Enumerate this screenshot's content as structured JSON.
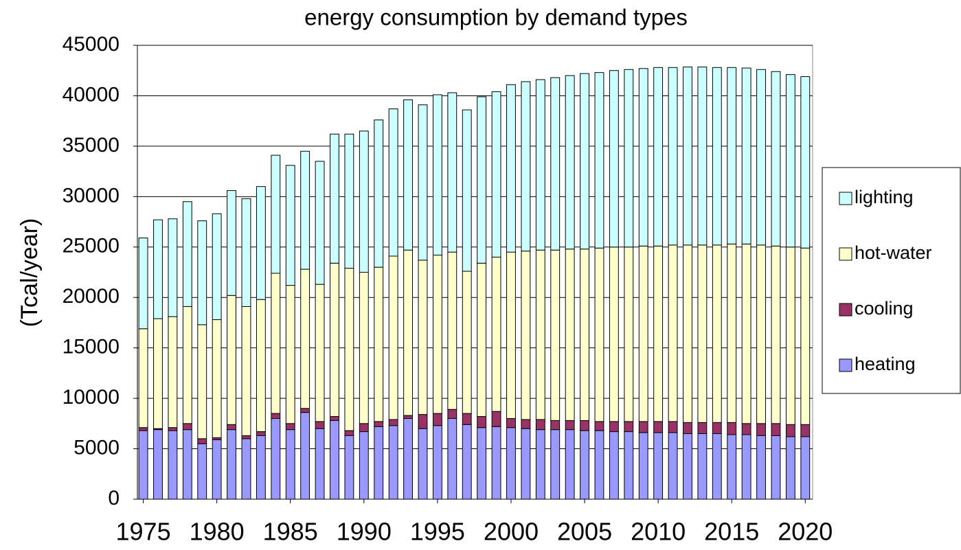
{
  "chart_data": {
    "type": "stacked_bar",
    "title": "energy consumption by demand types",
    "y_label": "(Tcal/year)",
    "x": [
      1975,
      1976,
      1977,
      1978,
      1979,
      1980,
      1981,
      1982,
      1983,
      1984,
      1985,
      1986,
      1987,
      1988,
      1989,
      1990,
      1991,
      1992,
      1993,
      1994,
      1995,
      1996,
      1997,
      1998,
      1999,
      2000,
      2001,
      2002,
      2003,
      2004,
      2005,
      2006,
      2007,
      2008,
      2009,
      2010,
      2011,
      2012,
      2013,
      2014,
      2015,
      2016,
      2017,
      2018,
      2019,
      2020
    ],
    "xlim": [
      1974.6,
      2020.5
    ],
    "xticks": [
      1975,
      1980,
      1985,
      1990,
      1995,
      2000,
      2005,
      2010,
      2015,
      2020
    ],
    "ylim": [
      0,
      45000
    ],
    "yticks": [
      0,
      5000,
      10000,
      15000,
      20000,
      25000,
      30000,
      35000,
      40000,
      45000
    ],
    "grid": true,
    "legend": "right",
    "series": [
      {
        "name": "heating",
        "color": "#9999ff",
        "values": [
          6800,
          6900,
          6800,
          6900,
          5500,
          5900,
          6900,
          6000,
          6300,
          8000,
          6900,
          8600,
          7000,
          7800,
          6300,
          6700,
          7200,
          7300,
          8000,
          7000,
          7300,
          8000,
          7400,
          7100,
          7200,
          7100,
          7000,
          6900,
          6900,
          6900,
          6800,
          6800,
          6700,
          6700,
          6600,
          6600,
          6600,
          6500,
          6500,
          6500,
          6400,
          6400,
          6300,
          6300,
          6200,
          6200
        ]
      },
      {
        "name": "cooling",
        "color": "#993366",
        "values": [
          300,
          100,
          300,
          600,
          500,
          200,
          500,
          300,
          400,
          500,
          600,
          400,
          700,
          400,
          500,
          800,
          500,
          600,
          300,
          1400,
          1200,
          900,
          1100,
          1100,
          1500,
          900,
          900,
          1000,
          900,
          900,
          1000,
          900,
          1000,
          1000,
          1100,
          1100,
          1100,
          1100,
          1100,
          1100,
          1200,
          1100,
          1200,
          1200,
          1200,
          1200
        ]
      },
      {
        "name": "hot-water",
        "color": "#ffffcc",
        "values": [
          9800,
          10900,
          11000,
          11600,
          11300,
          11700,
          12800,
          12800,
          13100,
          13900,
          13700,
          13800,
          13600,
          15200,
          16100,
          15000,
          15300,
          16200,
          16400,
          15300,
          15700,
          15600,
          14100,
          15200,
          15300,
          16500,
          16700,
          16800,
          16900,
          17000,
          17000,
          17200,
          17300,
          17300,
          17400,
          17400,
          17500,
          17600,
          17600,
          17600,
          17700,
          17800,
          17700,
          17600,
          17600,
          17500
        ]
      },
      {
        "name": "lighting",
        "color": "#ccffff",
        "values": [
          9000,
          9800,
          9700,
          10400,
          10300,
          10500,
          10400,
          10700,
          11200,
          11700,
          11900,
          11700,
          12200,
          12800,
          13300,
          14000,
          14600,
          14600,
          14900,
          15400,
          15900,
          15800,
          16000,
          16500,
          16400,
          16600,
          16800,
          16900,
          17100,
          17200,
          17400,
          17400,
          17500,
          17600,
          17600,
          17700,
          17600,
          17650,
          17650,
          17600,
          17500,
          17450,
          17400,
          17300,
          17100,
          17000
        ]
      }
    ]
  }
}
